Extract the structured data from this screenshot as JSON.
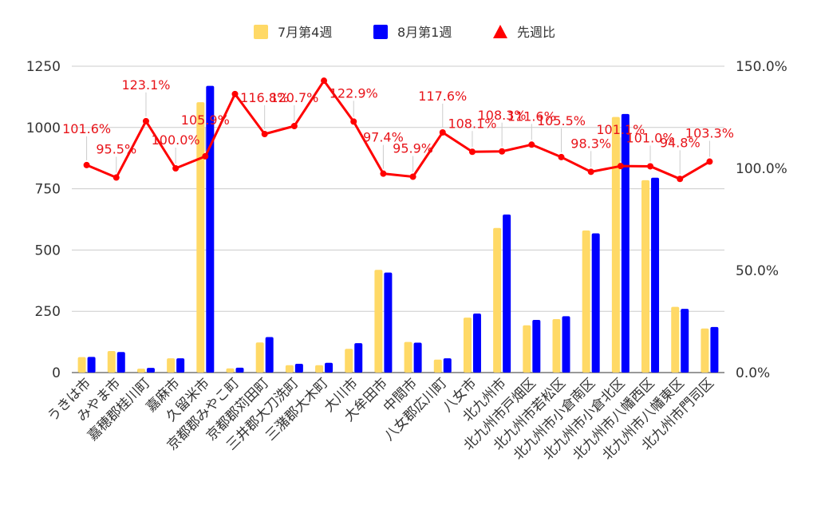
{
  "chart_data": {
    "type": "bar",
    "categories": [
      "うきは市",
      "みやま市",
      "嘉穂郡桂川町",
      "嘉麻市",
      "久留米市",
      "京都郡みやこ町",
      "京都郡苅田町",
      "三井郡大刀洗町",
      "三潴郡大木町",
      "大川市",
      "大牟田市",
      "中間市",
      "八女郡広川町",
      "八女市",
      "北九州市",
      "北九州市戸畑区",
      "北九州市若松区",
      "北九州市小倉南区",
      "北九州市小倉北区",
      "北九州市八幡西区",
      "北九州市八幡東区",
      "北九州市門司区"
    ],
    "series": [
      {
        "name": "7月第4週",
        "type": "bar",
        "axis": "left",
        "color": "#ffd966",
        "values": [
          63,
          88,
          16,
          58,
          1103,
          17,
          123,
          30,
          30,
          97,
          419,
          125,
          53,
          224,
          590,
          193,
          218,
          580,
          1043,
          785,
          268,
          180
        ]
      },
      {
        "name": "8月第1週",
        "type": "bar",
        "axis": "left",
        "color": "#0000ff",
        "values": [
          64,
          84,
          19,
          58,
          1170,
          20,
          145,
          36,
          40,
          120,
          408,
          122,
          58,
          241,
          645,
          215,
          230,
          568,
          1055,
          795,
          260,
          186
        ]
      },
      {
        "name": "先週比",
        "type": "line",
        "axis": "right",
        "color": "#ff0000",
        "values": [
          1.016,
          0.955,
          1.231,
          1.0,
          1.059,
          1.364,
          1.168,
          1.207,
          1.429,
          1.229,
          0.974,
          0.959,
          1.176,
          1.081,
          1.083,
          1.116,
          1.055,
          0.983,
          1.011,
          1.01,
          0.948,
          1.033
        ]
      }
    ],
    "data_labels": [
      "101.6%",
      "95.5%",
      "123.1%",
      "100.0%",
      "105.9%",
      "",
      "116.8%",
      "120.7%",
      "",
      "122.9%",
      "97.4%",
      "95.9%",
      "117.6%",
      "108.1%",
      "108.3%",
      "111.6%",
      "105.5%",
      "98.3%",
      "101.1%",
      "101.0%",
      "94.8%",
      "103.3%"
    ],
    "y_left": {
      "ticks": [
        "0",
        "250",
        "500",
        "750",
        "1000",
        "1250"
      ],
      "ylim": [
        0,
        1250
      ]
    },
    "y_right": {
      "ticks": [
        "0.0%",
        "50.0%",
        "100.0%",
        "150.0%"
      ],
      "ylim": [
        0,
        1.5
      ]
    },
    "grid": true,
    "legend_position": "top-center"
  }
}
